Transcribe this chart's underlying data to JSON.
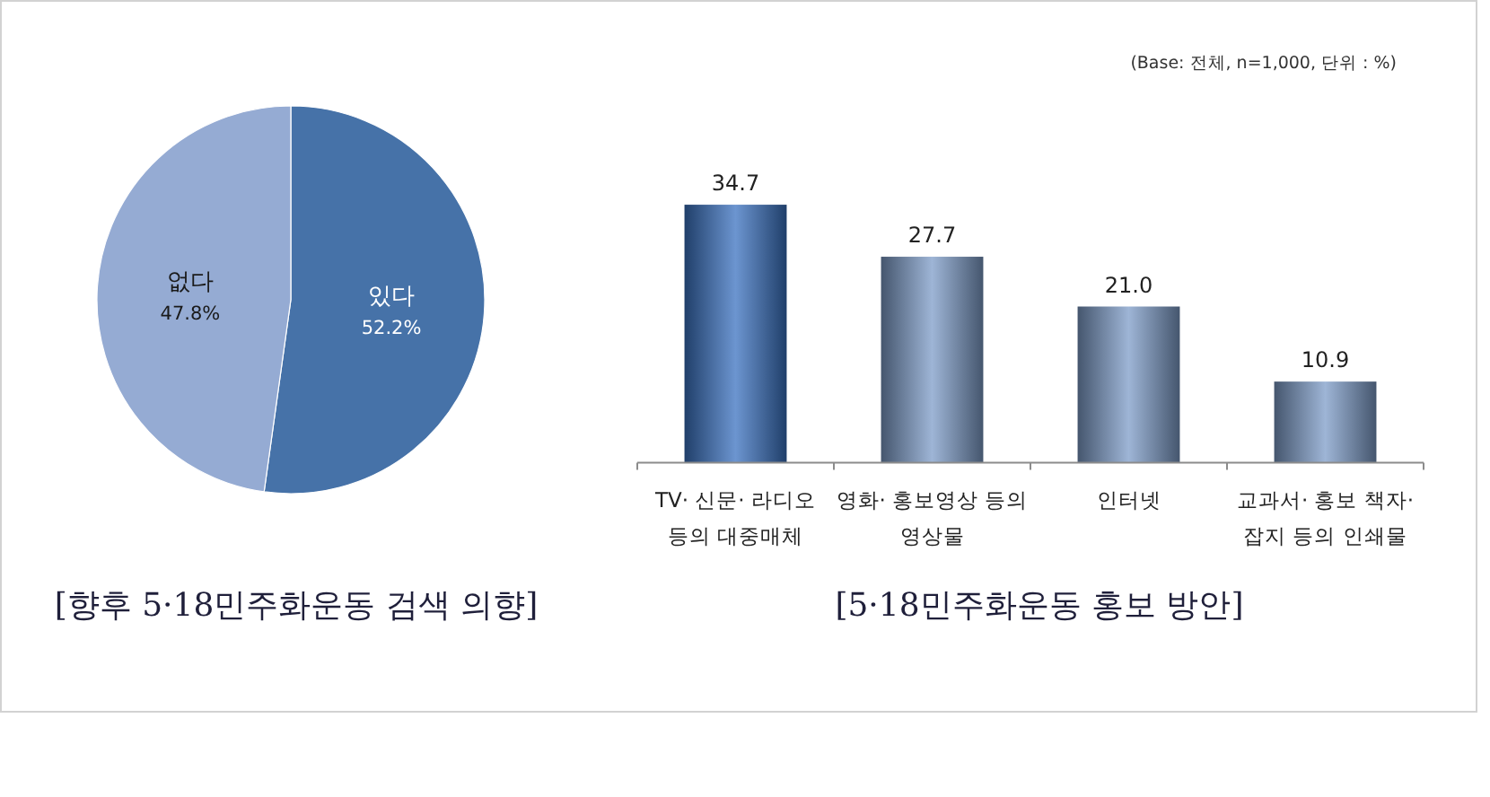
{
  "chart_data": [
    {
      "type": "pie",
      "title": "[향후 5·18민주화운동 검색 의향]",
      "categories": [
        "있다",
        "없다"
      ],
      "values": [
        52.2,
        47.8
      ],
      "colors": [
        "#4672a8",
        "#95abd3"
      ],
      "value_labels": [
        "52.2%",
        "47.8%"
      ]
    },
    {
      "type": "bar",
      "title": "[5·18민주화운동 홍보 방안]",
      "annotations": [
        "(Base: 전체, n=1,000, 단위 : %)"
      ],
      "categories": [
        "TV· 신문· 라디오 등의 대중매체",
        "영화· 홍보영상 등의 영상물",
        "인터넷",
        "교과서· 홍보 책자· 잡지 등의 인쇄물"
      ],
      "values": [
        34.7,
        27.7,
        21.0,
        10.9
      ],
      "colors": [
        "#3b72c0",
        "#7d9cc8",
        "#7d9cc8",
        "#7d9cc8"
      ],
      "value_labels": [
        "34.7",
        "27.7",
        "21.0",
        "10.9"
      ]
    }
  ]
}
